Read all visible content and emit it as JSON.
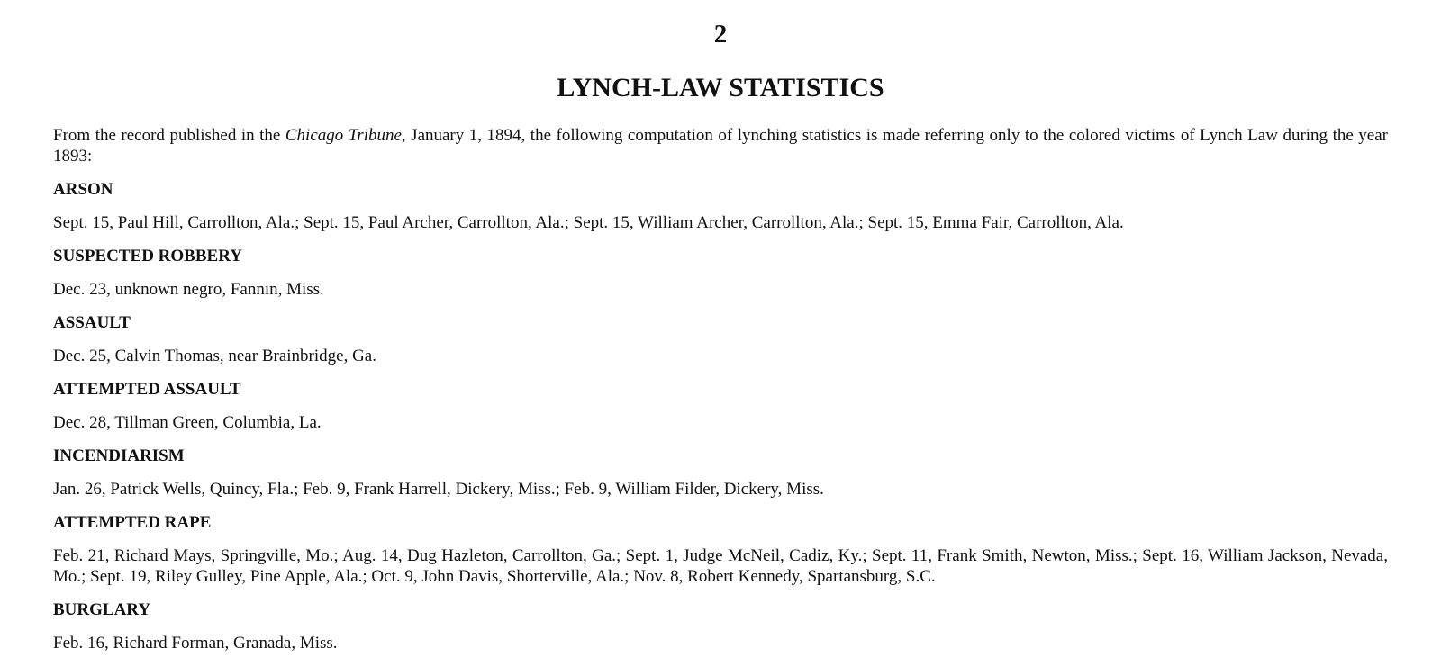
{
  "page_number": "2",
  "title": "LYNCH-LAW STATISTICS",
  "intro": {
    "before": "From the record published in the ",
    "source_italic": "Chicago Tribune",
    "after": ", January 1, 1894, the following computation of lynching statistics is made referring only to the colored victims of Lynch Law during the year 1893:"
  },
  "sections": [
    {
      "heading": "ARSON",
      "text": "Sept. 15, Paul Hill, Carrollton, Ala.; Sept. 15, Paul Archer, Carrollton, Ala.; Sept. 15, William Archer, Carrollton, Ala.; Sept. 15, Emma Fair, Carrollton, Ala."
    },
    {
      "heading": "SUSPECTED ROBBERY",
      "text": "Dec. 23, unknown negro, Fannin, Miss."
    },
    {
      "heading": "ASSAULT",
      "text": "Dec. 25, Calvin Thomas, near Brainbridge, Ga."
    },
    {
      "heading": "ATTEMPTED ASSAULT",
      "text": "Dec. 28, Tillman Green, Columbia, La."
    },
    {
      "heading": "INCENDIARISM",
      "text": "Jan. 26, Patrick Wells, Quincy, Fla.; Feb. 9, Frank Harrell, Dickery, Miss.; Feb. 9, William Filder, Dickery, Miss."
    },
    {
      "heading": "ATTEMPTED RAPE",
      "text": "Feb. 21, Richard Mays, Springville, Mo.; Aug. 14, Dug Hazleton, Carrollton, Ga.; Sept. 1, Judge McNeil, Cadiz, Ky.; Sept. 11, Frank Smith, Newton, Miss.; Sept. 16, William Jackson, Nevada, Mo.; Sept. 19, Riley Gulley, Pine Apple, Ala.; Oct. 9, John Davis, Shorterville, Ala.; Nov. 8, Robert Kennedy, Spartansburg, S.C."
    },
    {
      "heading": "BURGLARY",
      "text": "Feb. 16, Richard Forman, Granada, Miss."
    }
  ]
}
